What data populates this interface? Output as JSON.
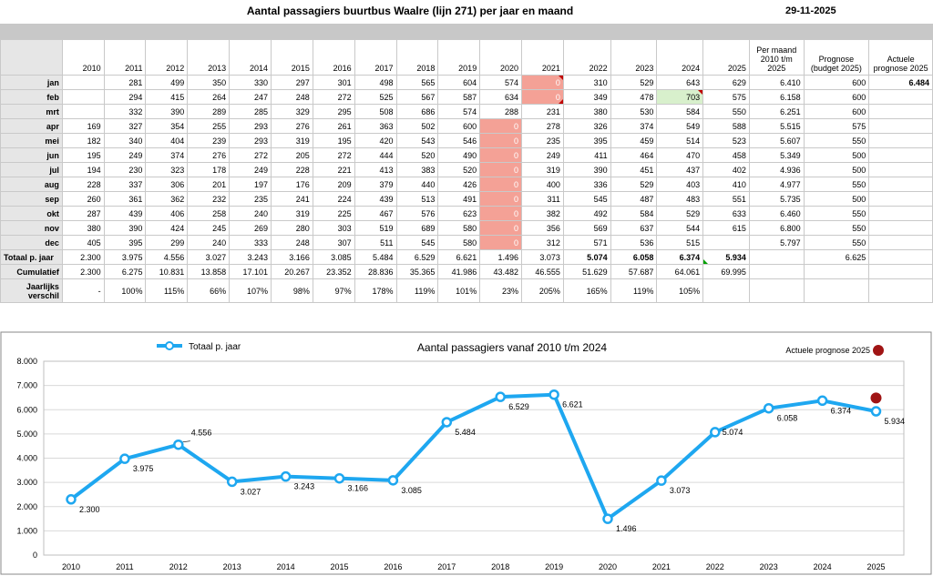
{
  "header": {
    "title": "Aantal passagiers buurtbus Waalre (lijn 271) per jaar en maand",
    "date": "29-11-2025"
  },
  "table": {
    "year_headers": [
      "2010",
      "2011",
      "2012",
      "2013",
      "2014",
      "2015",
      "2016",
      "2017",
      "2018",
      "2019",
      "2020",
      "2021",
      "2022",
      "2023",
      "2024",
      "2025"
    ],
    "extra_headers": [
      "Per maand 2010 t/m 2025",
      "Prognose (budget 2025)",
      "Actuele prognose 2025"
    ],
    "months": [
      {
        "label": "jan",
        "values": [
          "",
          "281",
          "499",
          "350",
          "330",
          "297",
          "301",
          "498",
          "565",
          "604",
          "574",
          "0",
          "310",
          "529",
          "643",
          "629"
        ],
        "avg": "6.410",
        "prognose": "600",
        "actueel": "6.484"
      },
      {
        "label": "feb",
        "values": [
          "",
          "294",
          "415",
          "264",
          "247",
          "248",
          "272",
          "525",
          "567",
          "587",
          "634",
          "0",
          "349",
          "478",
          "703",
          "575"
        ],
        "avg": "6.158",
        "prognose": "600",
        "actueel": ""
      },
      {
        "label": "mrt",
        "values": [
          "",
          "332",
          "390",
          "289",
          "285",
          "329",
          "295",
          "508",
          "686",
          "574",
          "288",
          "231",
          "380",
          "530",
          "584",
          "550"
        ],
        "avg": "6.251",
        "prognose": "600",
        "actueel": ""
      },
      {
        "label": "apr",
        "values": [
          "169",
          "327",
          "354",
          "255",
          "293",
          "276",
          "261",
          "363",
          "502",
          "600",
          "0",
          "278",
          "326",
          "374",
          "549",
          "588"
        ],
        "avg": "5.515",
        "prognose": "575",
        "actueel": ""
      },
      {
        "label": "mei",
        "values": [
          "182",
          "340",
          "404",
          "239",
          "293",
          "319",
          "195",
          "420",
          "543",
          "546",
          "0",
          "235",
          "395",
          "459",
          "514",
          "523"
        ],
        "avg": "5.607",
        "prognose": "550",
        "actueel": ""
      },
      {
        "label": "jun",
        "values": [
          "195",
          "249",
          "374",
          "276",
          "272",
          "205",
          "272",
          "444",
          "520",
          "490",
          "0",
          "249",
          "411",
          "464",
          "470",
          "458"
        ],
        "avg": "5.349",
        "prognose": "500",
        "actueel": ""
      },
      {
        "label": "jul",
        "values": [
          "194",
          "230",
          "323",
          "178",
          "249",
          "228",
          "221",
          "413",
          "383",
          "520",
          "0",
          "319",
          "390",
          "451",
          "437",
          "402"
        ],
        "avg": "4.936",
        "prognose": "500",
        "actueel": ""
      },
      {
        "label": "aug",
        "values": [
          "228",
          "337",
          "306",
          "201",
          "197",
          "176",
          "209",
          "379",
          "440",
          "426",
          "0",
          "400",
          "336",
          "529",
          "403",
          "410"
        ],
        "avg": "4.977",
        "prognose": "550",
        "actueel": ""
      },
      {
        "label": "sep",
        "values": [
          "260",
          "361",
          "362",
          "232",
          "235",
          "241",
          "224",
          "439",
          "513",
          "491",
          "0",
          "311",
          "545",
          "487",
          "483",
          "551"
        ],
        "avg": "5.735",
        "prognose": "500",
        "actueel": ""
      },
      {
        "label": "okt",
        "values": [
          "287",
          "439",
          "406",
          "258",
          "240",
          "319",
          "225",
          "467",
          "576",
          "623",
          "0",
          "382",
          "492",
          "584",
          "529",
          "633"
        ],
        "avg": "6.460",
        "prognose": "550",
        "actueel": ""
      },
      {
        "label": "nov",
        "values": [
          "380",
          "390",
          "424",
          "245",
          "269",
          "280",
          "303",
          "519",
          "689",
          "580",
          "0",
          "356",
          "569",
          "637",
          "544",
          "615"
        ],
        "avg": "6.800",
        "prognose": "550",
        "actueel": ""
      },
      {
        "label": "dec",
        "values": [
          "405",
          "395",
          "299",
          "240",
          "333",
          "248",
          "307",
          "511",
          "545",
          "580",
          "0",
          "312",
          "571",
          "536",
          "515",
          ""
        ],
        "avg": "5.797",
        "prognose": "550",
        "actueel": ""
      }
    ],
    "totaal": {
      "label": "Totaal p. jaar",
      "values": [
        "2.300",
        "3.975",
        "4.556",
        "3.027",
        "3.243",
        "3.166",
        "3.085",
        "5.484",
        "6.529",
        "6.621",
        "1.496",
        "3.073",
        "5.074",
        "6.058",
        "6.374",
        "5.934"
      ],
      "avg": "",
      "prognose": "6.625",
      "actueel": ""
    },
    "cumulatief": {
      "label": "Cumulatief",
      "values": [
        "2.300",
        "6.275",
        "10.831",
        "13.858",
        "17.101",
        "20.267",
        "23.352",
        "28.836",
        "35.365",
        "41.986",
        "43.482",
        "46.555",
        "51.629",
        "57.687",
        "64.061",
        "69.995"
      ],
      "avg": "",
      "prognose": "",
      "actueel": ""
    },
    "jaarlijks": {
      "label": "Jaarlijks verschil",
      "values": [
        "-",
        "100%",
        "115%",
        "66%",
        "107%",
        "98%",
        "97%",
        "178%",
        "119%",
        "101%",
        "23%",
        "205%",
        "165%",
        "119%",
        "105%",
        ""
      ],
      "avg": "",
      "prognose": "",
      "actueel": ""
    }
  },
  "chart_data": {
    "type": "line",
    "title": "Aantal passagiers vanaf 2010 t/m 2024",
    "x": [
      "2010",
      "2011",
      "2012",
      "2013",
      "2014",
      "2015",
      "2016",
      "2017",
      "2018",
      "2019",
      "2020",
      "2021",
      "2022",
      "2023",
      "2024",
      "2025"
    ],
    "series": [
      {
        "name": "Totaal p. jaar",
        "values": [
          2300,
          3975,
          4556,
          3027,
          3243,
          3166,
          3085,
          5484,
          6529,
          6621,
          1496,
          3073,
          5074,
          6058,
          6374,
          5934
        ],
        "labels": [
          "2.300",
          "3.975",
          "4.556",
          "3.027",
          "3.243",
          "3.166",
          "3.085",
          "5.484",
          "6.529",
          "6.621",
          "1.496",
          "3.073",
          "5.074",
          "6.058",
          "6.374",
          "5.934"
        ],
        "color": "#1ea7f0"
      },
      {
        "name": "Actuele prognose 2025",
        "points": [
          {
            "x": "2025",
            "y": 6484
          }
        ],
        "color": "#a01414"
      }
    ],
    "ylim": [
      0,
      8000
    ],
    "yticks": [
      "0",
      "1.000",
      "2.000",
      "3.000",
      "4.000",
      "5.000",
      "6.000",
      "7.000",
      "8.000"
    ],
    "grid": true,
    "legend": "top"
  }
}
